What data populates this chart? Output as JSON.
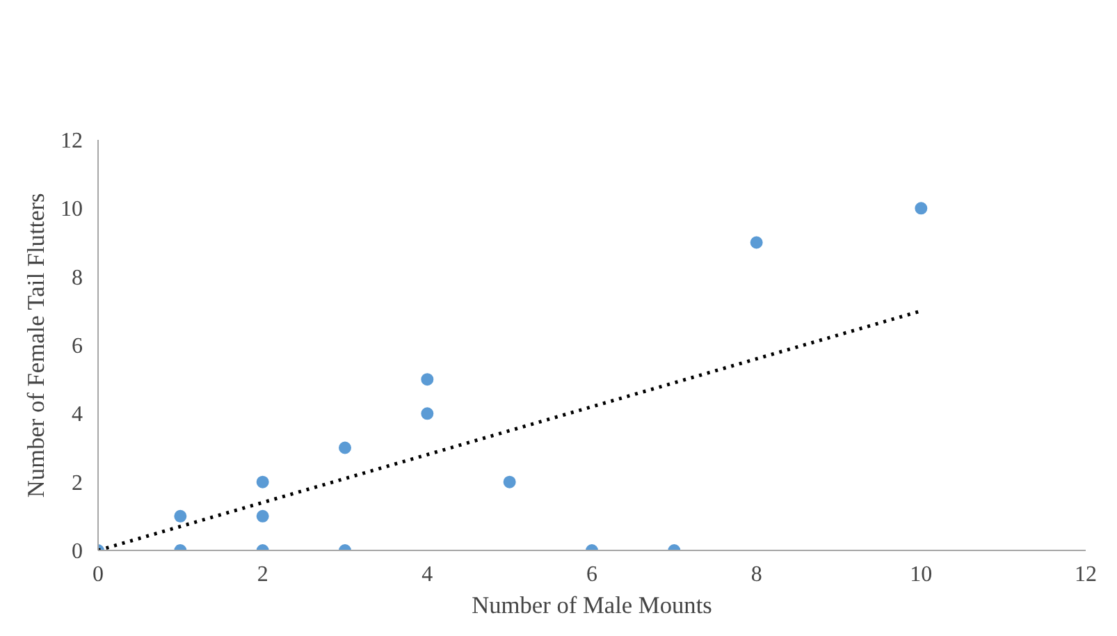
{
  "chart_data": {
    "type": "scatter",
    "xlabel": "Number of Male Mounts",
    "ylabel": "Number of Female Tail Flutters",
    "xlim": [
      0,
      12
    ],
    "ylim": [
      0,
      12
    ],
    "xticks": [
      0,
      2,
      4,
      6,
      8,
      10,
      12
    ],
    "yticks": [
      0,
      2,
      4,
      6,
      8,
      10,
      12
    ],
    "grid": false,
    "series": [
      {
        "color": "#5b9bd5",
        "marker": "circle",
        "x": [
          0,
          1,
          1,
          2,
          2,
          2,
          3,
          3,
          4,
          4,
          5,
          6,
          7,
          8,
          10
        ],
        "values": [
          0,
          1,
          0,
          2,
          1,
          0,
          3,
          0,
          5,
          4,
          2,
          0,
          0,
          9,
          10
        ]
      },
      {
        "type": "line",
        "color": "#000000",
        "marker": "none",
        "line_style": "dotted",
        "x": [
          0,
          10
        ],
        "values": [
          0,
          7.0
        ]
      }
    ]
  }
}
